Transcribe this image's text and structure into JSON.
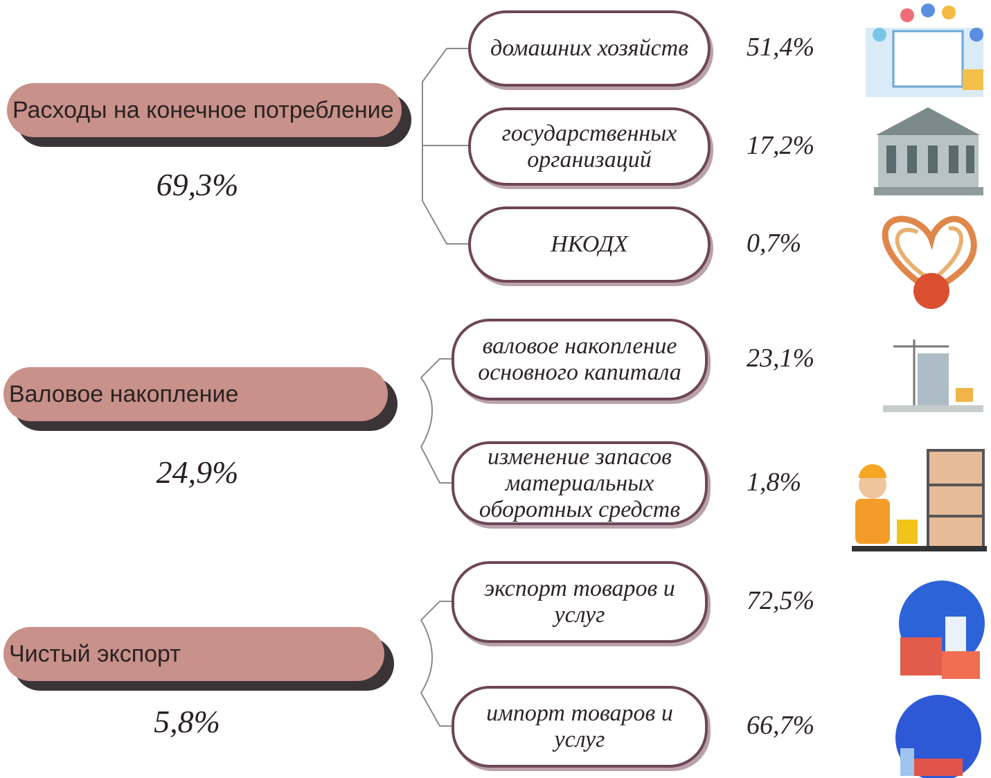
{
  "groups": [
    {
      "title": "Расходы на конечное потребление",
      "share": "69,3%",
      "items": [
        {
          "label": "домашних хозяйств",
          "share": "51,4%"
        },
        {
          "label": "государственных организаций",
          "share": "17,2%"
        },
        {
          "label": "НКОДХ",
          "share": "0,7%"
        }
      ]
    },
    {
      "title": "Валовое накопление",
      "share": "24,9%",
      "items": [
        {
          "label": "валовое накопление основного капитала",
          "share": "23,1%"
        },
        {
          "label": "изменение запасов материальных оборотных средств",
          "share": "1,8%"
        }
      ]
    },
    {
      "title": "Чистый экспорт",
      "share": "5,8%",
      "items": [
        {
          "label": "экспорт товаров и услуг",
          "share": "72,5%"
        },
        {
          "label": "импорт товаров и услуг",
          "share": "66,7%"
        }
      ]
    }
  ]
}
